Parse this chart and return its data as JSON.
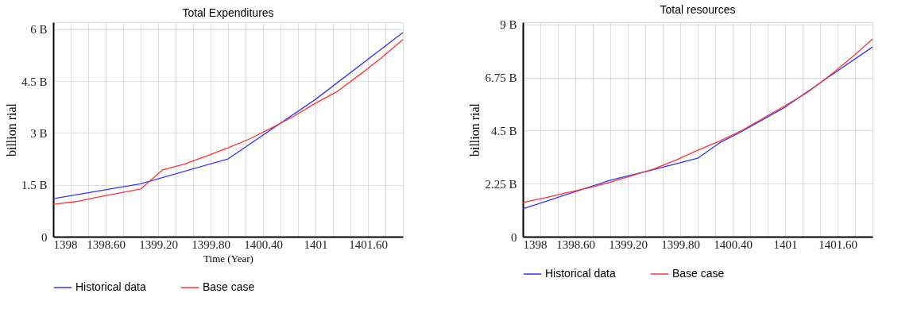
{
  "chart_data": [
    {
      "type": "line",
      "title": "Total Expenditures",
      "xlabel": "Time (Year)",
      "ylabel": "billion rial",
      "grid": true,
      "legend": "bottom",
      "xlim": [
        1398,
        1402
      ],
      "ylim": [
        0,
        6.2
      ],
      "xticks": [
        1398,
        {
          "value": 1398.2,
          "label": null
        },
        {
          "value": 1398.4,
          "label": null
        },
        {
          "value": 1398.6,
          "label": "1398.60"
        },
        {
          "value": 1398.8,
          "label": null
        },
        {
          "value": 1399,
          "label": null
        },
        {
          "value": 1399.2,
          "label": "1399.20"
        },
        {
          "value": 1399.4,
          "label": null
        },
        {
          "value": 1399.6,
          "label": null
        },
        {
          "value": 1399.8,
          "label": "1399.80"
        },
        {
          "value": 1400,
          "label": null
        },
        {
          "value": 1400.2,
          "label": null
        },
        {
          "value": 1400.4,
          "label": "1400.40"
        },
        {
          "value": 1400.6,
          "label": null
        },
        {
          "value": 1400.8,
          "label": null
        },
        1401,
        {
          "value": 1401.2,
          "label": null
        },
        {
          "value": 1401.4,
          "label": null
        },
        {
          "value": 1401.6,
          "label": "1401.60"
        },
        {
          "value": 1401.8,
          "label": null
        }
      ],
      "yticks": [
        0,
        {
          "value": 1.5,
          "label": "1.5 B"
        },
        {
          "value": 3,
          "label": "3 B"
        },
        {
          "value": 4.5,
          "label": "4.5 B"
        },
        {
          "value": 6,
          "label": "6 B"
        }
      ],
      "series": [
        {
          "name": "Historical data",
          "color": "#3333ff",
          "x": [
            1398,
            1399,
            1400,
            1401,
            1402
          ],
          "values": [
            1.1,
            1.53,
            2.25,
            3.97,
            5.9
          ]
        },
        {
          "name": "Base case",
          "color": "#ff3333",
          "x": [
            1398,
            1398.25,
            1398.5,
            1398.75,
            1399,
            1399.25,
            1399.5,
            1399.75,
            1400,
            1400.25,
            1400.5,
            1400.75,
            1401,
            1401.25,
            1401.5,
            1401.75,
            1402
          ],
          "values": [
            0.94,
            1.01,
            1.14,
            1.26,
            1.38,
            1.93,
            2.1,
            2.33,
            2.57,
            2.83,
            3.15,
            3.48,
            3.86,
            4.2,
            4.67,
            5.16,
            5.7
          ]
        }
      ]
    },
    {
      "type": "line",
      "title": "Total resources",
      "ylabel": "billion rial",
      "grid": true,
      "legend": "bottom",
      "xlim": [
        1398,
        1402
      ],
      "ylim": [
        0,
        9.1
      ],
      "xticks": [
        1398,
        {
          "value": 1398.2,
          "label": null
        },
        {
          "value": 1398.4,
          "label": null
        },
        {
          "value": 1398.6,
          "label": "1398.60"
        },
        {
          "value": 1398.8,
          "label": null
        },
        {
          "value": 1399,
          "label": null
        },
        {
          "value": 1399.2,
          "label": "1399.20"
        },
        {
          "value": 1399.4,
          "label": null
        },
        {
          "value": 1399.6,
          "label": null
        },
        {
          "value": 1399.8,
          "label": "1399.80"
        },
        {
          "value": 1400,
          "label": null
        },
        {
          "value": 1400.2,
          "label": null
        },
        {
          "value": 1400.4,
          "label": "1400.40"
        },
        {
          "value": 1400.6,
          "label": null
        },
        {
          "value": 1400.8,
          "label": null
        },
        1401,
        {
          "value": 1401.2,
          "label": null
        },
        {
          "value": 1401.4,
          "label": null
        },
        {
          "value": 1401.6,
          "label": "1401.60"
        },
        {
          "value": 1401.8,
          "label": null
        }
      ],
      "yticks": [
        0,
        {
          "value": 2.25,
          "label": "2.25 B"
        },
        {
          "value": 4.5,
          "label": "4.5 B"
        },
        {
          "value": 6.75,
          "label": "6.75 B"
        },
        {
          "value": 9,
          "label": "9 B"
        }
      ],
      "series": [
        {
          "name": "Historical data",
          "color": "#3333ff",
          "x": [
            1398,
            1399,
            1399.5,
            1400,
            1400.25,
            1400.5,
            1401,
            1401.5,
            1402
          ],
          "values": [
            1.18,
            2.4,
            2.85,
            3.33,
            3.98,
            4.46,
            5.5,
            6.78,
            8.05
          ]
        },
        {
          "name": "Base case",
          "color": "#ff3333",
          "x": [
            1398,
            1398.25,
            1398.5,
            1398.75,
            1399,
            1399.5,
            1399.75,
            1400,
            1400.25,
            1400.5,
            1401,
            1401.25,
            1401.5,
            1401.75,
            1402
          ],
          "values": [
            1.45,
            1.65,
            1.87,
            2.07,
            2.31,
            2.88,
            3.25,
            3.67,
            4.06,
            4.5,
            5.56,
            6.11,
            6.81,
            7.57,
            8.38
          ]
        }
      ]
    }
  ]
}
